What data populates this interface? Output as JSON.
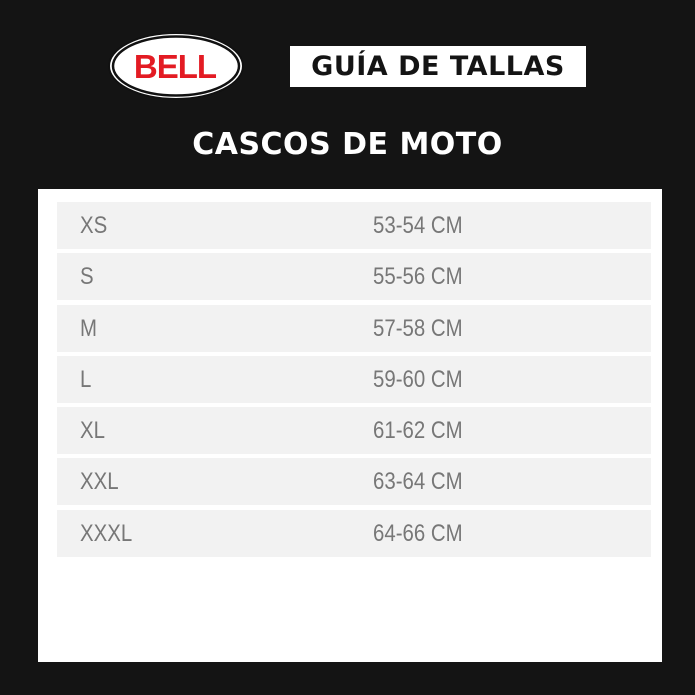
{
  "brand": {
    "logo_text": "BELL",
    "colors": {
      "logo_red": "#e31b23",
      "background": "#141414"
    }
  },
  "header": {
    "title": "GUÍA DE TALLAS",
    "subtitle": "CASCOS DE MOTO"
  },
  "sizes": [
    {
      "size": "XS",
      "range": "53-54 CM"
    },
    {
      "size": "S",
      "range": "55-56 CM"
    },
    {
      "size": "M",
      "range": "57-58 CM"
    },
    {
      "size": "L",
      "range": "59-60 CM"
    },
    {
      "size": "XL",
      "range": "61-62 CM"
    },
    {
      "size": "XXL",
      "range": "63-64 CM"
    },
    {
      "size": "XXXL",
      "range": "64-66 CM"
    }
  ]
}
